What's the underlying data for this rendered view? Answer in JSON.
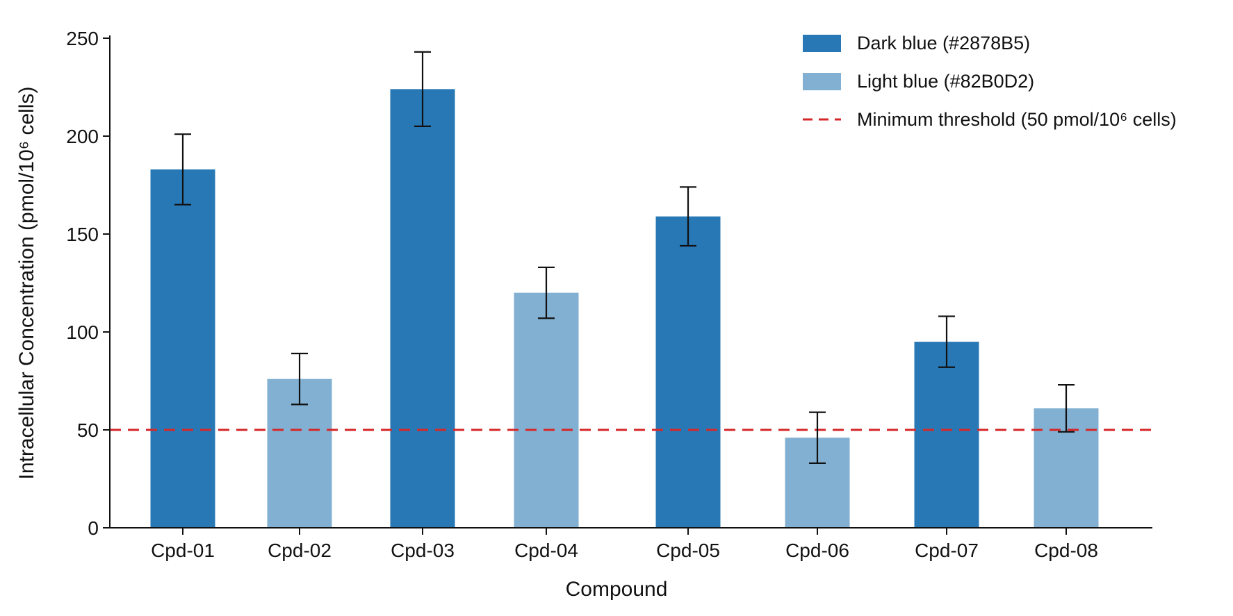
{
  "chart_data": {
    "type": "bar",
    "title": "",
    "xlabel": "Compound",
    "ylabel": "Intracellular Concentration (pmol/10⁶ cells)",
    "ylim": [
      0,
      250
    ],
    "yticks": [
      0,
      50,
      100,
      150,
      200,
      250
    ],
    "grid": false,
    "legend_position": "top-right",
    "categories": [
      "Cpd-01",
      "Cpd-02",
      "Cpd-03",
      "Cpd-04",
      "Cpd-05",
      "Cpd-06",
      "Cpd-07",
      "Cpd-08"
    ],
    "values": [
      183,
      76,
      224,
      120,
      159,
      46,
      95,
      61
    ],
    "errors": [
      18,
      13,
      19,
      13,
      15,
      13,
      13,
      12
    ],
    "bar_groups": [
      "dark",
      "light",
      "dark",
      "light",
      "dark",
      "light",
      "dark",
      "light"
    ],
    "colors": {
      "dark": "#2878B5",
      "light": "#82B0D2",
      "threshold": "#D62728"
    },
    "threshold": {
      "value": 50
    },
    "legend": [
      {
        "key": "dark",
        "kind": "bar",
        "label": "Dark blue (#2878B5)"
      },
      {
        "key": "light",
        "kind": "bar",
        "label": "Light blue (#82B0D2)"
      },
      {
        "key": "threshold",
        "kind": "dashed-line",
        "label": "Minimum threshold (50 pmol/10⁶ cells)"
      }
    ]
  }
}
